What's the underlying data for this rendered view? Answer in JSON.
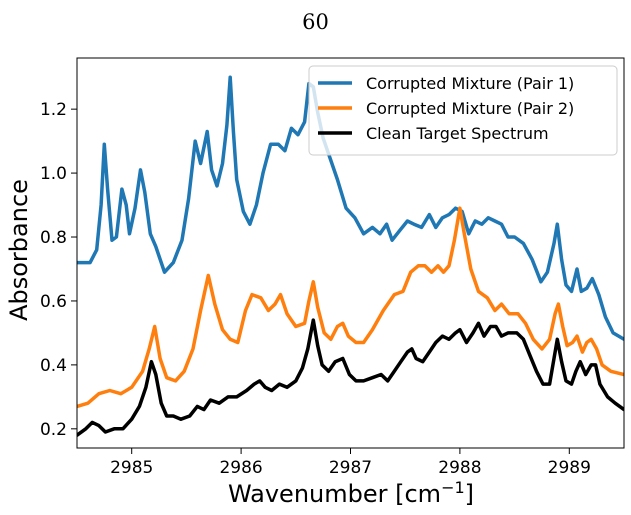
{
  "page": {
    "number": "60"
  },
  "chart_data": {
    "type": "line",
    "xlabel": "Wavenumber [cm",
    "xlabel_sup": "−1",
    "xlabel_end": "]",
    "ylabel": "Absorbance",
    "xlim": [
      2984.5,
      2989.5
    ],
    "ylim": [
      0.14,
      1.36
    ],
    "x_ticks": [
      2985,
      2986,
      2987,
      2988,
      2989
    ],
    "y_ticks": [
      0.2,
      0.4,
      0.6,
      0.8,
      1.0,
      1.2
    ],
    "x_tick_labels": [
      "2985",
      "2986",
      "2987",
      "2988",
      "2989"
    ],
    "y_tick_labels": [
      "0.2",
      "0.4",
      "0.6",
      "0.8",
      "1.0",
      "1.2"
    ],
    "grid": false,
    "legend_position": "top-right",
    "series": [
      {
        "name": "Corrupted Mixture (Pair 1)",
        "color": "#1f77b4",
        "points": [
          [
            2984.5,
            0.72
          ],
          [
            2984.62,
            0.72
          ],
          [
            2984.68,
            0.76
          ],
          [
            2984.72,
            0.9
          ],
          [
            2984.75,
            1.09
          ],
          [
            2984.78,
            0.95
          ],
          [
            2984.82,
            0.79
          ],
          [
            2984.86,
            0.8
          ],
          [
            2984.91,
            0.95
          ],
          [
            2984.95,
            0.9
          ],
          [
            2984.98,
            0.81
          ],
          [
            2985.03,
            0.89
          ],
          [
            2985.08,
            1.01
          ],
          [
            2985.12,
            0.94
          ],
          [
            2985.17,
            0.81
          ],
          [
            2985.22,
            0.77
          ],
          [
            2985.3,
            0.69
          ],
          [
            2985.38,
            0.72
          ],
          [
            2985.46,
            0.79
          ],
          [
            2985.52,
            0.92
          ],
          [
            2985.58,
            1.1
          ],
          [
            2985.63,
            1.03
          ],
          [
            2985.69,
            1.13
          ],
          [
            2985.73,
            1.01
          ],
          [
            2985.78,
            0.96
          ],
          [
            2985.83,
            1.03
          ],
          [
            2985.87,
            1.15
          ],
          [
            2985.9,
            1.3
          ],
          [
            2985.93,
            1.13
          ],
          [
            2985.96,
            0.98
          ],
          [
            2986.02,
            0.88
          ],
          [
            2986.08,
            0.84
          ],
          [
            2986.14,
            0.9
          ],
          [
            2986.2,
            1.0
          ],
          [
            2986.27,
            1.09
          ],
          [
            2986.34,
            1.09
          ],
          [
            2986.4,
            1.07
          ],
          [
            2986.46,
            1.14
          ],
          [
            2986.52,
            1.12
          ],
          [
            2986.58,
            1.16
          ],
          [
            2986.62,
            1.28
          ],
          [
            2986.66,
            1.27
          ],
          [
            2986.7,
            1.19
          ],
          [
            2986.75,
            1.11
          ],
          [
            2986.8,
            1.06
          ],
          [
            2986.88,
            0.98
          ],
          [
            2986.96,
            0.89
          ],
          [
            2987.04,
            0.86
          ],
          [
            2987.12,
            0.81
          ],
          [
            2987.2,
            0.83
          ],
          [
            2987.27,
            0.81
          ],
          [
            2987.33,
            0.84
          ],
          [
            2987.38,
            0.79
          ],
          [
            2987.45,
            0.82
          ],
          [
            2987.52,
            0.85
          ],
          [
            2987.58,
            0.84
          ],
          [
            2987.65,
            0.83
          ],
          [
            2987.72,
            0.87
          ],
          [
            2987.78,
            0.83
          ],
          [
            2987.84,
            0.86
          ],
          [
            2987.9,
            0.87
          ],
          [
            2987.96,
            0.89
          ],
          [
            2988.02,
            0.88
          ],
          [
            2988.08,
            0.81
          ],
          [
            2988.14,
            0.85
          ],
          [
            2988.2,
            0.84
          ],
          [
            2988.26,
            0.86
          ],
          [
            2988.32,
            0.85
          ],
          [
            2988.38,
            0.84
          ],
          [
            2988.44,
            0.8
          ],
          [
            2988.5,
            0.8
          ],
          [
            2988.58,
            0.78
          ],
          [
            2988.66,
            0.73
          ],
          [
            2988.74,
            0.66
          ],
          [
            2988.8,
            0.69
          ],
          [
            2988.86,
            0.78
          ],
          [
            2988.89,
            0.84
          ],
          [
            2988.93,
            0.73
          ],
          [
            2988.97,
            0.65
          ],
          [
            2989.02,
            0.63
          ],
          [
            2989.07,
            0.7
          ],
          [
            2989.11,
            0.63
          ],
          [
            2989.16,
            0.64
          ],
          [
            2989.21,
            0.67
          ],
          [
            2989.27,
            0.62
          ],
          [
            2989.33,
            0.55
          ],
          [
            2989.4,
            0.5
          ],
          [
            2989.5,
            0.48
          ]
        ]
      },
      {
        "name": "Corrupted Mixture (Pair 2)",
        "color": "#ff7f0e",
        "points": [
          [
            2984.5,
            0.27
          ],
          [
            2984.6,
            0.28
          ],
          [
            2984.7,
            0.31
          ],
          [
            2984.8,
            0.32
          ],
          [
            2984.9,
            0.31
          ],
          [
            2985.0,
            0.33
          ],
          [
            2985.1,
            0.38
          ],
          [
            2985.16,
            0.45
          ],
          [
            2985.21,
            0.52
          ],
          [
            2985.26,
            0.42
          ],
          [
            2985.32,
            0.36
          ],
          [
            2985.4,
            0.35
          ],
          [
            2985.48,
            0.38
          ],
          [
            2985.56,
            0.45
          ],
          [
            2985.63,
            0.57
          ],
          [
            2985.7,
            0.68
          ],
          [
            2985.76,
            0.59
          ],
          [
            2985.83,
            0.51
          ],
          [
            2985.9,
            0.48
          ],
          [
            2985.97,
            0.47
          ],
          [
            2986.04,
            0.57
          ],
          [
            2986.1,
            0.62
          ],
          [
            2986.18,
            0.61
          ],
          [
            2986.25,
            0.57
          ],
          [
            2986.31,
            0.59
          ],
          [
            2986.36,
            0.62
          ],
          [
            2986.42,
            0.56
          ],
          [
            2986.5,
            0.52
          ],
          [
            2986.58,
            0.53
          ],
          [
            2986.62,
            0.6
          ],
          [
            2986.66,
            0.66
          ],
          [
            2986.7,
            0.58
          ],
          [
            2986.76,
            0.5
          ],
          [
            2986.82,
            0.48
          ],
          [
            2986.88,
            0.52
          ],
          [
            2986.93,
            0.53
          ],
          [
            2986.98,
            0.49
          ],
          [
            2987.05,
            0.47
          ],
          [
            2987.12,
            0.47
          ],
          [
            2987.2,
            0.51
          ],
          [
            2987.3,
            0.57
          ],
          [
            2987.4,
            0.62
          ],
          [
            2987.48,
            0.63
          ],
          [
            2987.55,
            0.69
          ],
          [
            2987.62,
            0.71
          ],
          [
            2987.68,
            0.71
          ],
          [
            2987.74,
            0.69
          ],
          [
            2987.8,
            0.71
          ],
          [
            2987.85,
            0.69
          ],
          [
            2987.9,
            0.71
          ],
          [
            2987.95,
            0.79
          ],
          [
            2988.0,
            0.89
          ],
          [
            2988.04,
            0.81
          ],
          [
            2988.1,
            0.7
          ],
          [
            2988.17,
            0.63
          ],
          [
            2988.25,
            0.61
          ],
          [
            2988.32,
            0.57
          ],
          [
            2988.38,
            0.59
          ],
          [
            2988.45,
            0.56
          ],
          [
            2988.53,
            0.56
          ],
          [
            2988.6,
            0.53
          ],
          [
            2988.67,
            0.48
          ],
          [
            2988.75,
            0.45
          ],
          [
            2988.82,
            0.48
          ],
          [
            2988.87,
            0.56
          ],
          [
            2988.9,
            0.59
          ],
          [
            2988.94,
            0.52
          ],
          [
            2988.98,
            0.46
          ],
          [
            2989.03,
            0.47
          ],
          [
            2989.07,
            0.49
          ],
          [
            2989.12,
            0.44
          ],
          [
            2989.16,
            0.47
          ],
          [
            2989.2,
            0.48
          ],
          [
            2989.25,
            0.45
          ],
          [
            2989.3,
            0.4
          ],
          [
            2989.38,
            0.38
          ],
          [
            2989.5,
            0.37
          ]
        ]
      },
      {
        "name": "Clean Target Spectrum",
        "color": "#000000",
        "points": [
          [
            2984.5,
            0.18
          ],
          [
            2984.58,
            0.2
          ],
          [
            2984.64,
            0.22
          ],
          [
            2984.7,
            0.21
          ],
          [
            2984.76,
            0.19
          ],
          [
            2984.84,
            0.2
          ],
          [
            2984.92,
            0.2
          ],
          [
            2985.0,
            0.23
          ],
          [
            2985.07,
            0.27
          ],
          [
            2985.13,
            0.33
          ],
          [
            2985.18,
            0.41
          ],
          [
            2985.22,
            0.37
          ],
          [
            2985.27,
            0.28
          ],
          [
            2985.32,
            0.24
          ],
          [
            2985.38,
            0.24
          ],
          [
            2985.45,
            0.23
          ],
          [
            2985.53,
            0.24
          ],
          [
            2985.6,
            0.27
          ],
          [
            2985.66,
            0.26
          ],
          [
            2985.72,
            0.29
          ],
          [
            2985.8,
            0.28
          ],
          [
            2985.88,
            0.3
          ],
          [
            2985.96,
            0.3
          ],
          [
            2986.05,
            0.32
          ],
          [
            2986.12,
            0.34
          ],
          [
            2986.17,
            0.35
          ],
          [
            2986.22,
            0.33
          ],
          [
            2986.28,
            0.32
          ],
          [
            2986.35,
            0.34
          ],
          [
            2986.42,
            0.33
          ],
          [
            2986.5,
            0.35
          ],
          [
            2986.56,
            0.39
          ],
          [
            2986.61,
            0.45
          ],
          [
            2986.66,
            0.54
          ],
          [
            2986.7,
            0.46
          ],
          [
            2986.74,
            0.4
          ],
          [
            2986.8,
            0.38
          ],
          [
            2986.86,
            0.41
          ],
          [
            2986.93,
            0.42
          ],
          [
            2986.99,
            0.37
          ],
          [
            2987.05,
            0.35
          ],
          [
            2987.12,
            0.35
          ],
          [
            2987.2,
            0.36
          ],
          [
            2987.28,
            0.37
          ],
          [
            2987.34,
            0.35
          ],
          [
            2987.4,
            0.38
          ],
          [
            2987.46,
            0.41
          ],
          [
            2987.52,
            0.44
          ],
          [
            2987.56,
            0.45
          ],
          [
            2987.6,
            0.42
          ],
          [
            2987.66,
            0.41
          ],
          [
            2987.72,
            0.44
          ],
          [
            2987.78,
            0.47
          ],
          [
            2987.84,
            0.49
          ],
          [
            2987.9,
            0.48
          ],
          [
            2987.96,
            0.5
          ],
          [
            2988.0,
            0.51
          ],
          [
            2988.06,
            0.47
          ],
          [
            2988.12,
            0.5
          ],
          [
            2988.17,
            0.53
          ],
          [
            2988.22,
            0.49
          ],
          [
            2988.28,
            0.52
          ],
          [
            2988.33,
            0.52
          ],
          [
            2988.38,
            0.49
          ],
          [
            2988.44,
            0.5
          ],
          [
            2988.52,
            0.5
          ],
          [
            2988.58,
            0.48
          ],
          [
            2988.64,
            0.43
          ],
          [
            2988.7,
            0.38
          ],
          [
            2988.76,
            0.34
          ],
          [
            2988.82,
            0.34
          ],
          [
            2988.86,
            0.42
          ],
          [
            2988.89,
            0.48
          ],
          [
            2988.93,
            0.41
          ],
          [
            2988.97,
            0.35
          ],
          [
            2989.02,
            0.34
          ],
          [
            2989.06,
            0.38
          ],
          [
            2989.1,
            0.41
          ],
          [
            2989.15,
            0.37
          ],
          [
            2989.2,
            0.4
          ],
          [
            2989.24,
            0.4
          ],
          [
            2989.28,
            0.34
          ],
          [
            2989.35,
            0.3
          ],
          [
            2989.42,
            0.28
          ],
          [
            2989.5,
            0.26
          ]
        ]
      }
    ]
  }
}
